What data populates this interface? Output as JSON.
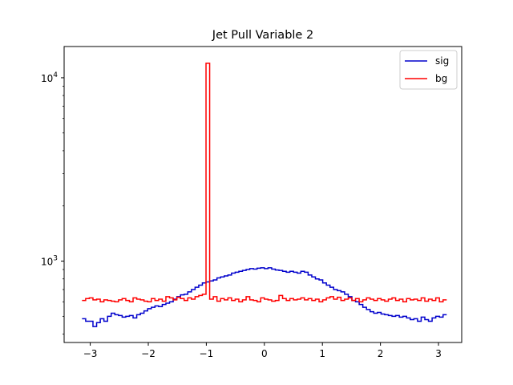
{
  "chart_data": {
    "type": "line",
    "step": true,
    "title": "Jet Pull Variable 2",
    "xlabel": "",
    "ylabel": "",
    "xlim": [
      -3.45,
      3.4
    ],
    "ylim": [
      360,
      14800
    ],
    "yscale": "log",
    "grid": false,
    "legend_position": "top-right",
    "x_ticks": [
      -3,
      -2,
      -1,
      0,
      1,
      2,
      3
    ],
    "x_tick_labels": [
      "−3",
      "−2",
      "−1",
      "0",
      "1",
      "2",
      "3"
    ],
    "y_major_ticks": [
      {
        "value": 1000,
        "base": "10",
        "exp": "3"
      },
      {
        "value": 10000,
        "base": "10",
        "exp": "4"
      }
    ],
    "y_minor_ticks": [
      400,
      500,
      600,
      700,
      800,
      900,
      2000,
      3000,
      4000,
      5000,
      6000,
      7000,
      8000,
      9000
    ],
    "x_edges": [
      -3.1416,
      -3.0788,
      -3.0159,
      -2.9531,
      -2.8903,
      -2.8274,
      -2.7646,
      -2.7018,
      -2.6389,
      -2.5761,
      -2.5133,
      -2.4504,
      -2.3876,
      -2.3248,
      -2.2619,
      -2.1991,
      -2.1363,
      -2.0735,
      -2.0106,
      -1.9478,
      -1.885,
      -1.8221,
      -1.7593,
      -1.6965,
      -1.6336,
      -1.5708,
      -1.508,
      -1.4451,
      -1.3823,
      -1.3195,
      -1.2566,
      -1.1938,
      -1.131,
      -1.0681,
      -1.0053,
      -0.9425,
      -0.8796,
      -0.8168,
      -0.754,
      -0.6912,
      -0.6283,
      -0.5655,
      -0.5027,
      -0.4398,
      -0.377,
      -0.3142,
      -0.2513,
      -0.1885,
      -0.1257,
      -0.0628,
      0,
      0.0628,
      0.1257,
      0.1885,
      0.2513,
      0.3142,
      0.377,
      0.4398,
      0.5027,
      0.5655,
      0.6283,
      0.6912,
      0.754,
      0.8168,
      0.8796,
      0.9425,
      1.0053,
      1.0681,
      1.131,
      1.1938,
      1.2566,
      1.3195,
      1.3823,
      1.4451,
      1.508,
      1.5708,
      1.6336,
      1.6965,
      1.7593,
      1.8221,
      1.885,
      1.9478,
      2.0106,
      2.0735,
      2.1363,
      2.1991,
      2.2619,
      2.3248,
      2.3876,
      2.4504,
      2.5133,
      2.5761,
      2.6389,
      2.7018,
      2.7646,
      2.8274,
      2.8903,
      2.9531,
      3.0159,
      3.0788,
      3.1416
    ],
    "series": [
      {
        "name": "sig",
        "color": "#0000cc",
        "values": [
          485,
          470,
          470,
          440,
          462,
          485,
          470,
          500,
          520,
          510,
          505,
          495,
          500,
          505,
          490,
          510,
          520,
          535,
          550,
          560,
          570,
          565,
          580,
          590,
          600,
          620,
          640,
          655,
          660,
          680,
          700,
          720,
          740,
          760,
          770,
          780,
          790,
          810,
          820,
          830,
          840,
          860,
          870,
          880,
          890,
          900,
          910,
          905,
          915,
          920,
          910,
          920,
          905,
          895,
          890,
          880,
          870,
          880,
          870,
          860,
          880,
          870,
          840,
          820,
          800,
          790,
          760,
          740,
          720,
          700,
          690,
          680,
          660,
          640,
          610,
          600,
          580,
          560,
          545,
          530,
          520,
          525,
          515,
          510,
          505,
          500,
          505,
          495,
          500,
          490,
          480,
          485,
          470,
          495,
          480,
          470,
          490,
          500,
          495,
          510
        ]
      },
      {
        "name": "bg",
        "color": "#ff0000",
        "values": [
          610,
          625,
          630,
          615,
          620,
          600,
          615,
          610,
          605,
          600,
          615,
          625,
          610,
          600,
          630,
          620,
          615,
          605,
          600,
          625,
          610,
          620,
          605,
          640,
          630,
          615,
          635,
          625,
          610,
          630,
          620,
          640,
          650,
          660,
          12000,
          620,
          640,
          605,
          625,
          615,
          630,
          610,
          620,
          600,
          615,
          640,
          615,
          610,
          600,
          630,
          620,
          615,
          605,
          610,
          650,
          625,
          610,
          625,
          615,
          620,
          630,
          615,
          625,
          610,
          620,
          600,
          615,
          630,
          640,
          620,
          635,
          610,
          620,
          630,
          610,
          625,
          600,
          615,
          630,
          620,
          610,
          625,
          615,
          605,
          620,
          630,
          610,
          620,
          600,
          625,
          615,
          620,
          610,
          630,
          605,
          620,
          610,
          630,
          600,
          615
        ]
      }
    ]
  }
}
